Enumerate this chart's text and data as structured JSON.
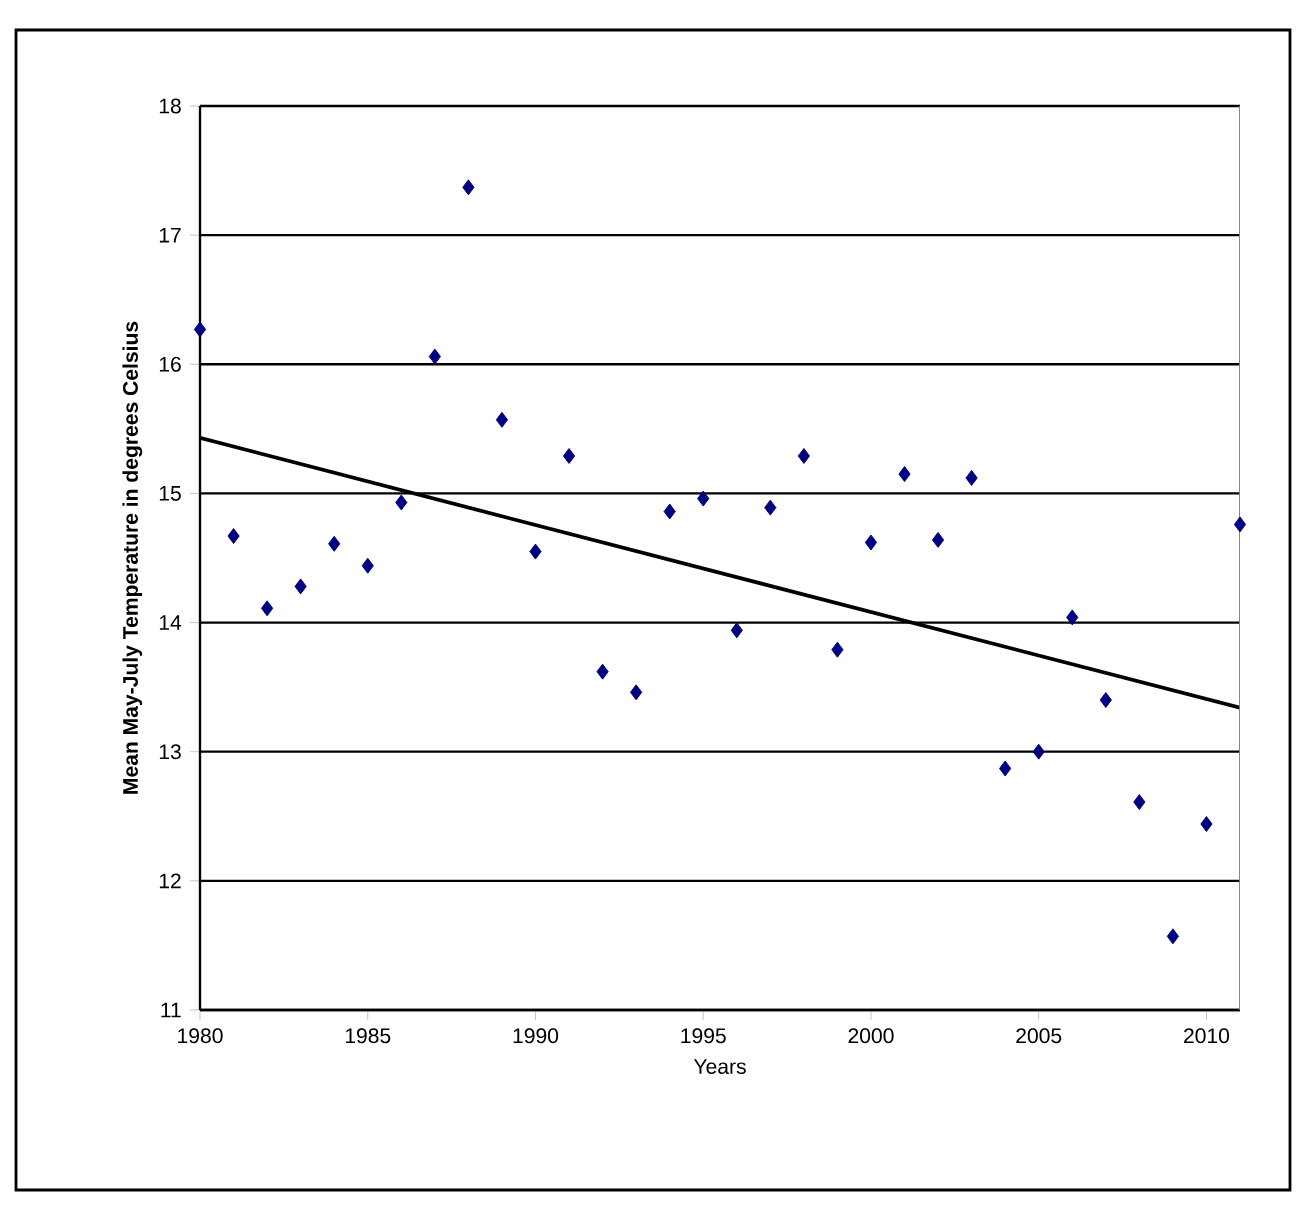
{
  "chart_data": {
    "type": "scatter",
    "xlabel": "Years",
    "ylabel": "Mean May-July Temperature in degrees Celsius",
    "xlim": [
      1980,
      2011
    ],
    "xticks": [
      1980,
      1985,
      1990,
      1995,
      2000,
      2005,
      2010
    ],
    "ylim": [
      11,
      18
    ],
    "yticks": [
      11,
      12,
      13,
      14,
      15,
      16,
      17,
      18
    ],
    "grid": "y",
    "marker": "diamond",
    "series": [
      {
        "color": "#000080",
        "x": [
          1980,
          1981,
          1982,
          1983,
          1984,
          1985,
          1986,
          1987,
          1988,
          1989,
          1990,
          1991,
          1992,
          1993,
          1994,
          1995,
          1996,
          1997,
          1998,
          1999,
          2000,
          2001,
          2002,
          2003,
          2004,
          2005,
          2006,
          2007,
          2008,
          2009,
          2010,
          2011
        ],
        "values": [
          16.27,
          14.67,
          14.11,
          14.28,
          14.61,
          14.44,
          14.93,
          16.06,
          17.37,
          15.57,
          14.55,
          15.29,
          13.62,
          13.46,
          14.86,
          14.96,
          13.94,
          14.89,
          15.29,
          13.79,
          14.62,
          15.15,
          14.64,
          15.12,
          12.87,
          13.0,
          14.04,
          13.4,
          12.61,
          11.57,
          12.44,
          14.76
        ]
      },
      {
        "type": "line",
        "color": "#000000",
        "marker": "none",
        "line_style": "solid",
        "x": [
          1980,
          2011
        ],
        "values": [
          15.43,
          13.34
        ]
      }
    ]
  }
}
